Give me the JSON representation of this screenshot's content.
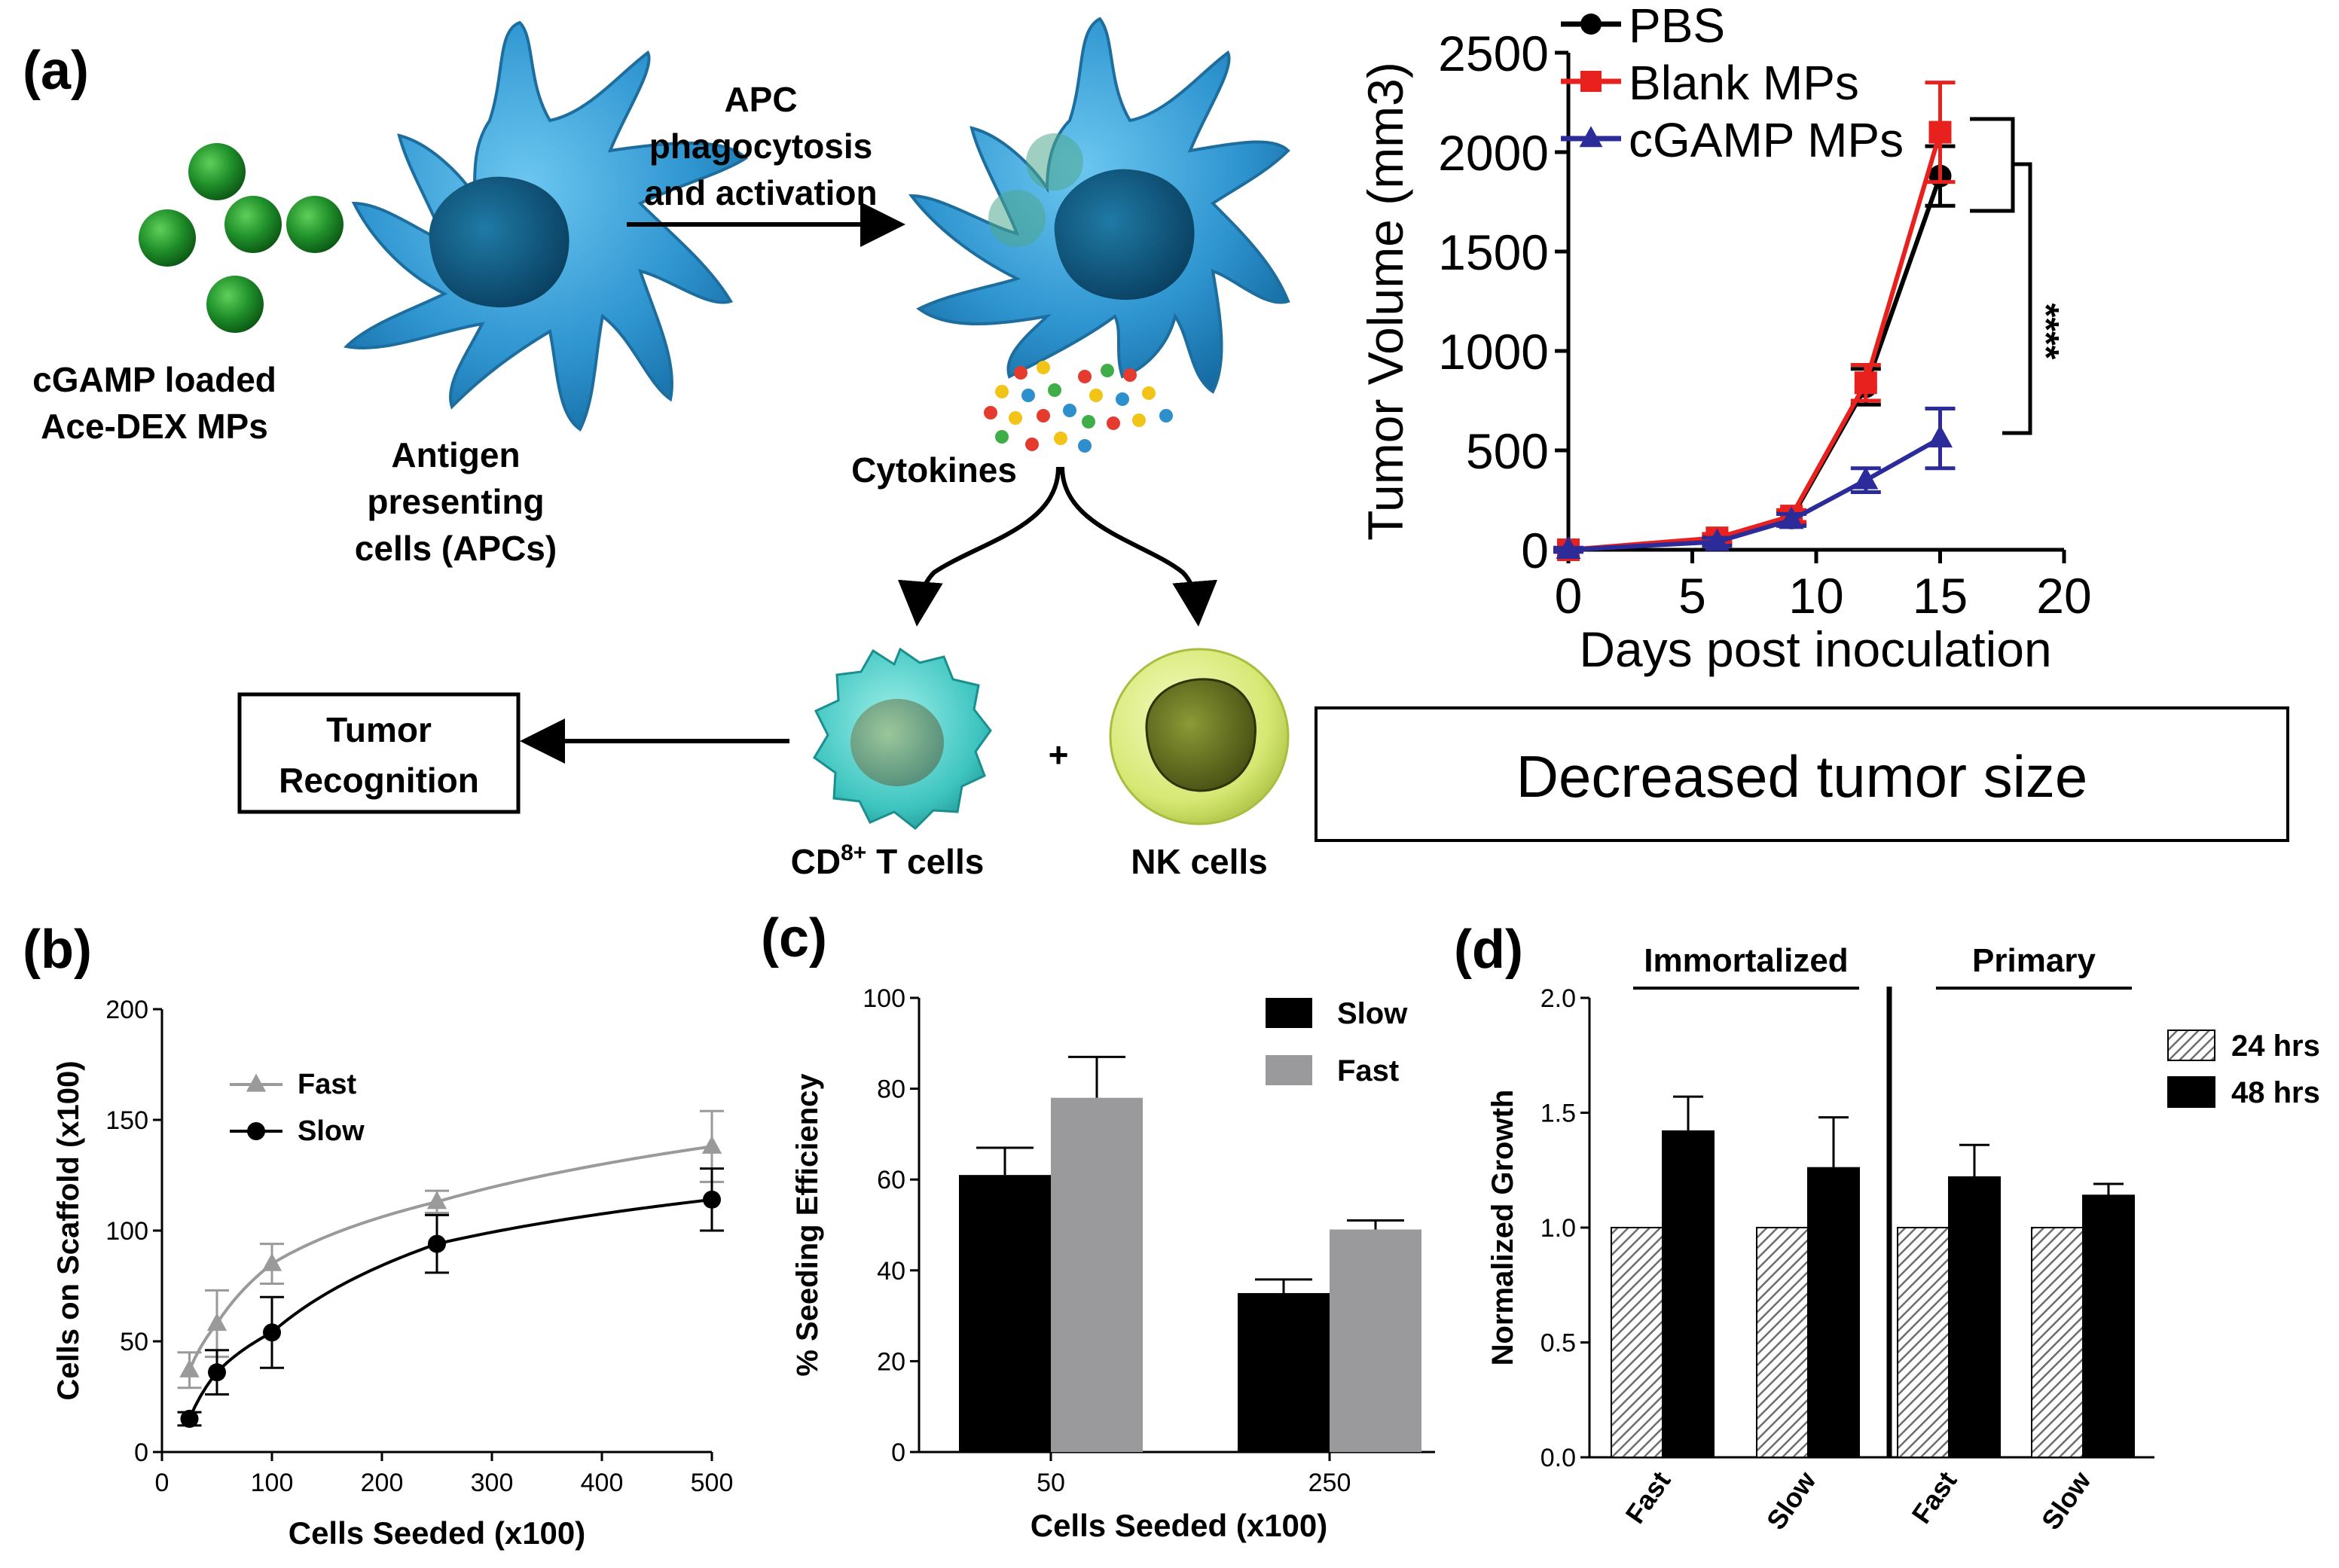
{
  "panels": {
    "a": "(a)",
    "b": "(b)",
    "c": "(c)",
    "d": "(d)"
  },
  "schematic": {
    "mp_label_1": "cGAMP loaded",
    "mp_label_2": "Ace-DEX MPs",
    "apc_label_1": "Antigen",
    "apc_label_2": "presenting",
    "apc_label_3": "cells (APCs)",
    "arrow_label_1": "APC",
    "arrow_label_2": "phagocytosis",
    "arrow_label_3": "and activation",
    "cytokines": "Cytokines",
    "tcell_label": "CD",
    "tcell_sup": "8+",
    "tcell_label_rest": " T cells",
    "plus": "+",
    "nk_label": "NK cells",
    "tumor_box_1": "Tumor",
    "tumor_box_2": "Recognition",
    "decreased_box": "Decreased tumor size",
    "colors": {
      "apc": "#2f95d0",
      "nucleus": "#0c5077",
      "mp": "#1f8f2a",
      "tcell": "#3ec4c0",
      "nk": "#d6e873"
    }
  },
  "chart_data": [
    {
      "id": "a",
      "type": "line",
      "title": "",
      "xlabel": "Days post inoculation",
      "ylabel": "Tumor Volume (mm3)",
      "xlim": [
        0,
        20
      ],
      "ylim": [
        0,
        2500
      ],
      "xticks": [
        0,
        5,
        10,
        15,
        20
      ],
      "yticks": [
        0,
        500,
        1000,
        1500,
        2000,
        2500
      ],
      "legend_position": "top-left",
      "significance": "****",
      "series": [
        {
          "name": "PBS",
          "color": "#000000",
          "marker": "circle",
          "x": [
            0,
            6,
            9,
            12,
            15
          ],
          "y": [
            0,
            50,
            160,
            820,
            1880
          ],
          "err": [
            10,
            20,
            30,
            90,
            150
          ]
        },
        {
          "name": "Blank MPs",
          "color": "#e8211f",
          "marker": "square",
          "x": [
            0,
            6,
            9,
            12,
            15
          ],
          "y": [
            0,
            60,
            170,
            840,
            2100
          ],
          "err": [
            10,
            20,
            30,
            90,
            250
          ]
        },
        {
          "name": "cGAMP MPs",
          "color": "#2b2b9a",
          "marker": "triangle",
          "x": [
            0,
            6,
            9,
            12,
            15
          ],
          "y": [
            0,
            40,
            150,
            350,
            560
          ],
          "err": [
            10,
            20,
            30,
            60,
            150
          ]
        }
      ]
    },
    {
      "id": "b",
      "type": "scatter",
      "title": "",
      "xlabel": "Cells Seeded (x100)",
      "ylabel": "Cells on Scaffold (x100)",
      "xlim": [
        0,
        500
      ],
      "ylim": [
        0,
        200
      ],
      "xticks": [
        0,
        100,
        200,
        300,
        400,
        500
      ],
      "yticks": [
        0,
        50,
        100,
        150,
        200
      ],
      "legend_position": "top-left",
      "series": [
        {
          "name": "Fast",
          "color": "#9a9a9a",
          "marker": "triangle",
          "x": [
            25,
            50,
            100,
            250,
            500
          ],
          "y": [
            37,
            58,
            85,
            113,
            138
          ],
          "err": [
            8,
            15,
            9,
            5,
            16
          ]
        },
        {
          "name": "Slow",
          "color": "#000000",
          "marker": "circle",
          "x": [
            25,
            50,
            100,
            250,
            500
          ],
          "y": [
            15,
            36,
            54,
            94,
            114
          ],
          "err": [
            3,
            10,
            16,
            13,
            14
          ]
        }
      ]
    },
    {
      "id": "c",
      "type": "bar",
      "title": "",
      "xlabel": "Cells Seeded (x100)",
      "ylabel": "% Seeding Efficiency",
      "ylim": [
        0,
        100
      ],
      "yticks": [
        0,
        20,
        40,
        60,
        80,
        100
      ],
      "categories": [
        "50",
        "250"
      ],
      "legend_position": "top-right",
      "series": [
        {
          "name": "Slow",
          "color": "#000000",
          "values": [
            61,
            35
          ],
          "err": [
            6,
            3
          ]
        },
        {
          "name": "Fast",
          "color": "#9a9a9c",
          "values": [
            78,
            49
          ],
          "err": [
            9,
            2
          ]
        }
      ]
    },
    {
      "id": "d",
      "type": "bar",
      "title": "",
      "xlabel": "",
      "ylabel": "Normalized Growth",
      "ylim": [
        0,
        2.0
      ],
      "yticks": [
        "0.0",
        "0.5",
        "1.0",
        "1.5",
        "2.0"
      ],
      "group_labels": [
        "Immortalized",
        "Primary"
      ],
      "categories": [
        "Fast",
        "Slow",
        "Fast",
        "Slow"
      ],
      "legend_position": "top-right",
      "series": [
        {
          "name": "24 hrs",
          "color": "#cfcfcf",
          "pattern": "hatch",
          "values": [
            1.0,
            1.0,
            1.0,
            1.0
          ],
          "err": [
            0,
            0,
            0,
            0
          ]
        },
        {
          "name": "48 hrs",
          "color": "#000000",
          "values": [
            1.42,
            1.26,
            1.22,
            1.14
          ],
          "err": [
            0.15,
            0.22,
            0.14,
            0.05
          ]
        }
      ]
    }
  ]
}
